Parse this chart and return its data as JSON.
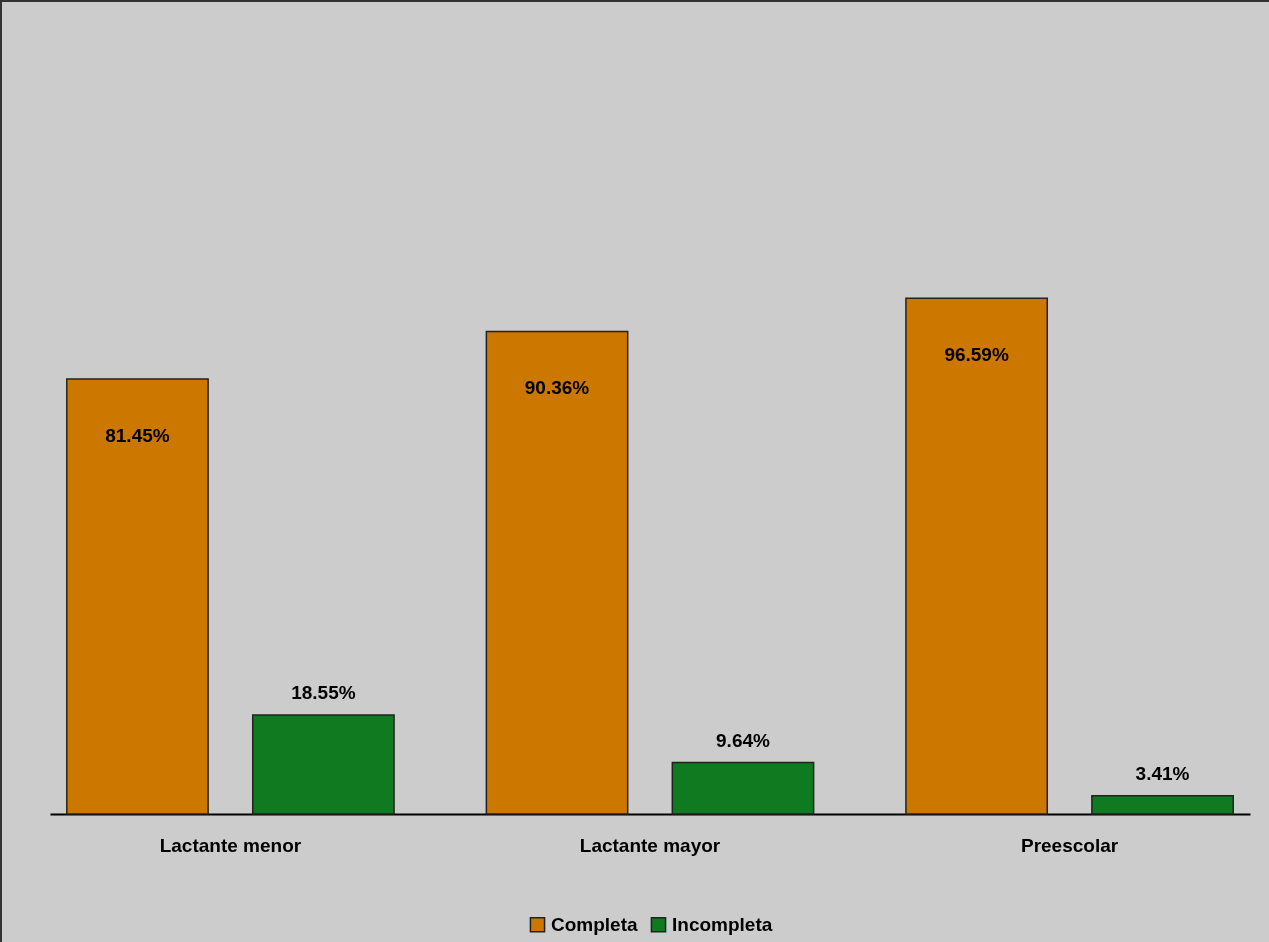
{
  "chart_data": {
    "type": "bar",
    "categories": [
      "Lactante menor",
      "Lactante mayor",
      "Preescolar"
    ],
    "series": [
      {
        "name": "Completa",
        "color": "#cc7700",
        "values": [
          81.45,
          90.36,
          96.59
        ],
        "value_labels": [
          "81.45%",
          "90.36%",
          "96.59%"
        ]
      },
      {
        "name": "Incompleta",
        "color": "#0f7a1f",
        "values": [
          18.55,
          9.64,
          3.41
        ],
        "value_labels": [
          "18.55%",
          "9.64%",
          "3.41%"
        ]
      }
    ],
    "legend": "bottom"
  }
}
